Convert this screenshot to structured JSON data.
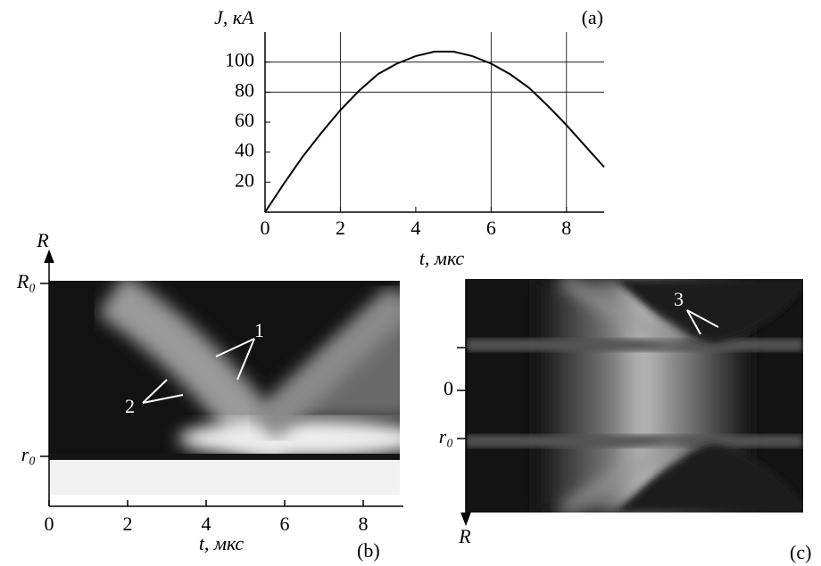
{
  "chart_data": [
    {
      "type": "line",
      "panel_label": "(a)",
      "y_label": "J, кА",
      "x_label": "t, мкс",
      "x": [
        0,
        0.5,
        1,
        1.5,
        2,
        2.5,
        3,
        3.5,
        4,
        4.5,
        5,
        5.5,
        6,
        6.5,
        7,
        7.5,
        8,
        8.5,
        9
      ],
      "values": [
        0,
        19,
        37,
        53,
        68,
        81,
        92,
        99,
        104,
        107,
        107,
        104,
        99,
        92,
        83,
        71,
        58,
        44,
        30
      ],
      "color": "#000000",
      "xlim": [
        0,
        9
      ],
      "ylim": [
        0,
        120
      ],
      "xticks": [
        0,
        2,
        4,
        6,
        8
      ],
      "yticks": [
        20,
        40,
        60,
        80,
        100
      ],
      "xgrid": [
        2,
        6,
        8
      ],
      "ygrid": [
        80,
        100
      ]
    },
    {
      "type": "streak",
      "panel_label": "(b)",
      "x_label": "t, мкс",
      "y_label": "R",
      "xlim": [
        0,
        9
      ],
      "xticks": [
        0,
        2,
        4,
        6,
        8
      ],
      "y_tick_labels": [
        "R₀",
        "r₀"
      ],
      "annotations": [
        "1",
        "2"
      ]
    },
    {
      "type": "streak-symmetric",
      "panel_label": "(c)",
      "y_label": "R",
      "y_tick_labels": [
        "0",
        "r₀"
      ],
      "annotations": [
        "3"
      ]
    }
  ]
}
